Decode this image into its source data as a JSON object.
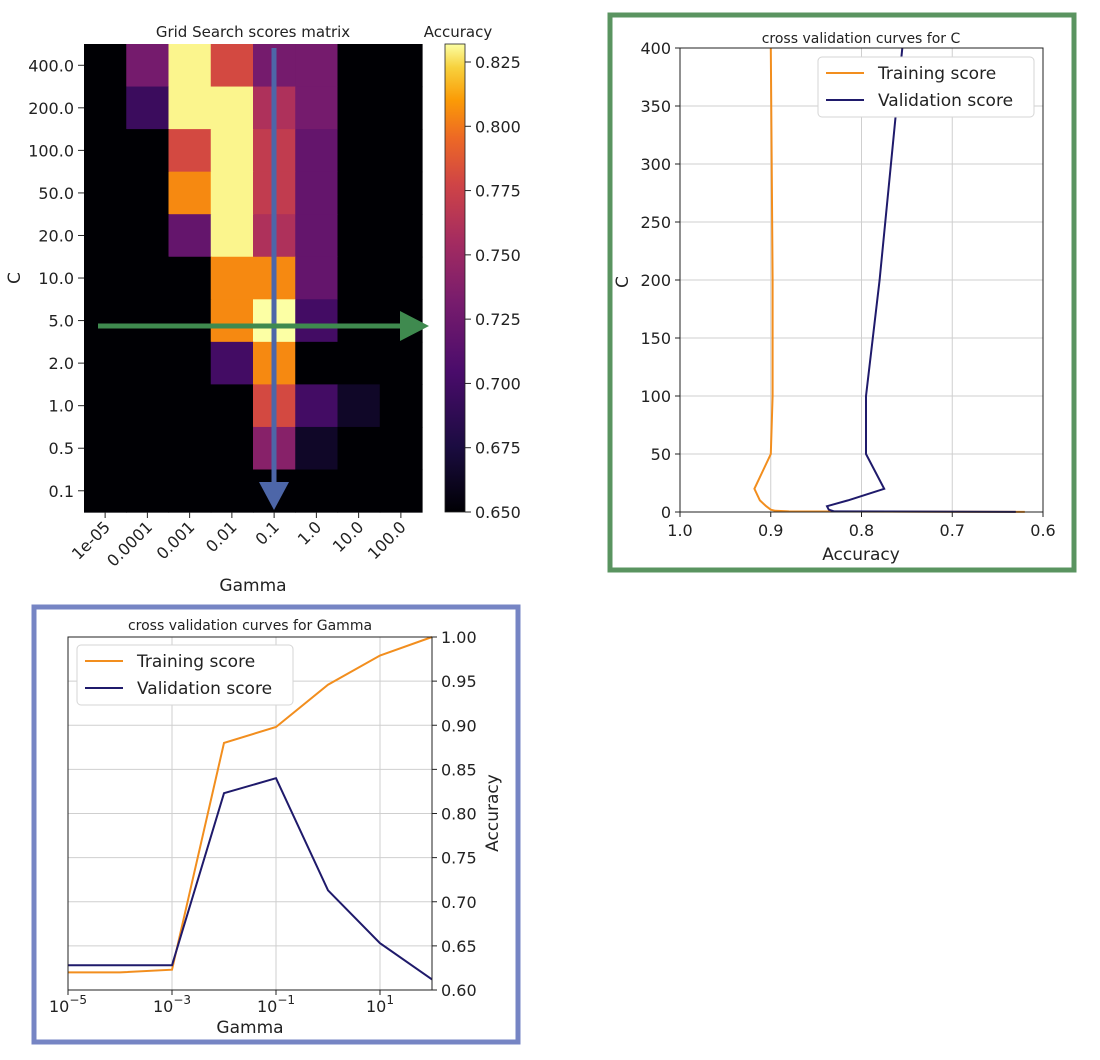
{
  "colors": {
    "training": "#f28e1e",
    "validation": "#1f1a6b",
    "green_frame": "#5a9460",
    "blue_frame": "#7685c4",
    "green_arrow": "#3f8a4f",
    "blue_arrow": "#4d66a8",
    "grid": "#cfcfcf"
  },
  "chart_data": [
    {
      "type": "heatmap",
      "title": "Grid Search scores matrix",
      "colorbar_label": "Accuracy",
      "xlabel": "Gamma",
      "ylabel": "C",
      "x_categories": [
        "1e-05",
        "0.0001",
        "0.001",
        "0.01",
        "0.1",
        "1.0",
        "10.0",
        "100.0"
      ],
      "y_categories": [
        "400.0",
        "200.0",
        "100.0",
        "50.0",
        "20.0",
        "10.0",
        "5.0",
        "2.0",
        "1.0",
        "0.5",
        "0.1"
      ],
      "colorbar_ticks": [
        "0.825",
        "0.800",
        "0.775",
        "0.750",
        "0.725",
        "0.700",
        "0.675",
        "0.650"
      ],
      "colorbar_range": [
        0.65,
        0.832
      ],
      "values": [
        [
          0.65,
          0.73,
          0.83,
          0.78,
          0.73,
          0.73,
          0.65,
          0.65
        ],
        [
          0.65,
          0.695,
          0.83,
          0.83,
          0.76,
          0.73,
          0.65,
          0.65
        ],
        [
          0.65,
          0.65,
          0.78,
          0.83,
          0.77,
          0.72,
          0.65,
          0.65
        ],
        [
          0.65,
          0.65,
          0.805,
          0.83,
          0.77,
          0.72,
          0.65,
          0.65
        ],
        [
          0.65,
          0.65,
          0.72,
          0.83,
          0.76,
          0.72,
          0.65,
          0.65
        ],
        [
          0.65,
          0.65,
          0.65,
          0.805,
          0.805,
          0.72,
          0.65,
          0.65
        ],
        [
          0.65,
          0.65,
          0.65,
          0.805,
          0.832,
          0.7,
          0.65,
          0.65
        ],
        [
          0.65,
          0.65,
          0.65,
          0.7,
          0.805,
          0.65,
          0.65,
          0.65
        ],
        [
          0.65,
          0.65,
          0.65,
          0.65,
          0.78,
          0.7,
          0.665,
          0.65
        ],
        [
          0.65,
          0.65,
          0.65,
          0.65,
          0.74,
          0.665,
          0.65,
          0.65
        ],
        [
          0.65,
          0.65,
          0.65,
          0.65,
          0.65,
          0.65,
          0.65,
          0.65
        ]
      ]
    },
    {
      "type": "line",
      "title": "cross validation curves for C",
      "xlabel": "Accuracy",
      "ylabel": "C",
      "xlim": [
        1.0,
        0.6
      ],
      "ylim": [
        0,
        400
      ],
      "x_ticks": [
        "1.0",
        "0.9",
        "0.8",
        "0.7",
        "0.6"
      ],
      "y_ticks": [
        "0",
        "50",
        "100",
        "150",
        "200",
        "250",
        "300",
        "350",
        "400"
      ],
      "legend_position": "top-right",
      "series": [
        {
          "name": "Training score",
          "points": [
            [
              0.62,
              0.1
            ],
            [
              0.88,
              0.5
            ],
            [
              0.895,
              1
            ],
            [
              0.9,
              2
            ],
            [
              0.905,
              5
            ],
            [
              0.912,
              10
            ],
            [
              0.918,
              20
            ],
            [
              0.9,
              50
            ],
            [
              0.898,
              100
            ],
            [
              0.898,
              200
            ],
            [
              0.9,
              400
            ]
          ]
        },
        {
          "name": "Validation score",
          "points": [
            [
              0.63,
              0.1
            ],
            [
              0.83,
              0.5
            ],
            [
              0.836,
              2
            ],
            [
              0.838,
              5
            ],
            [
              0.815,
              10
            ],
            [
              0.775,
              20
            ],
            [
              0.795,
              50
            ],
            [
              0.795,
              100
            ],
            [
              0.78,
              200
            ],
            [
              0.755,
              400
            ]
          ]
        }
      ]
    },
    {
      "type": "line",
      "title": "cross validation curves for Gamma",
      "xlabel": "Gamma",
      "ylabel": "Accuracy",
      "x_scale": "log",
      "xlim": [
        1e-05,
        100
      ],
      "ylim": [
        0.6,
        1.0
      ],
      "x_ticks": [
        {
          "base": "10",
          "exp": "−5",
          "value": 1e-05
        },
        {
          "base": "10",
          "exp": "−3",
          "value": 0.001
        },
        {
          "base": "10",
          "exp": "−1",
          "value": 0.1
        },
        {
          "base": "10",
          "exp": "1",
          "value": 10
        }
      ],
      "y_ticks": [
        "1.00",
        "0.95",
        "0.90",
        "0.85",
        "0.80",
        "0.75",
        "0.70",
        "0.65",
        "0.60"
      ],
      "legend_position": "top-left",
      "series": [
        {
          "name": "Training score",
          "points": [
            [
              1e-05,
              0.62
            ],
            [
              0.0001,
              0.62
            ],
            [
              0.001,
              0.623
            ],
            [
              0.01,
              0.88
            ],
            [
              0.1,
              0.898
            ],
            [
              1,
              0.946
            ],
            [
              10,
              0.979
            ],
            [
              100,
              1.0
            ]
          ]
        },
        {
          "name": "Validation score",
          "points": [
            [
              1e-05,
              0.628
            ],
            [
              0.0001,
              0.628
            ],
            [
              0.001,
              0.628
            ],
            [
              0.01,
              0.823
            ],
            [
              0.1,
              0.84
            ],
            [
              1,
              0.713
            ],
            [
              10,
              0.653
            ],
            [
              100,
              0.612
            ]
          ]
        }
      ]
    }
  ]
}
